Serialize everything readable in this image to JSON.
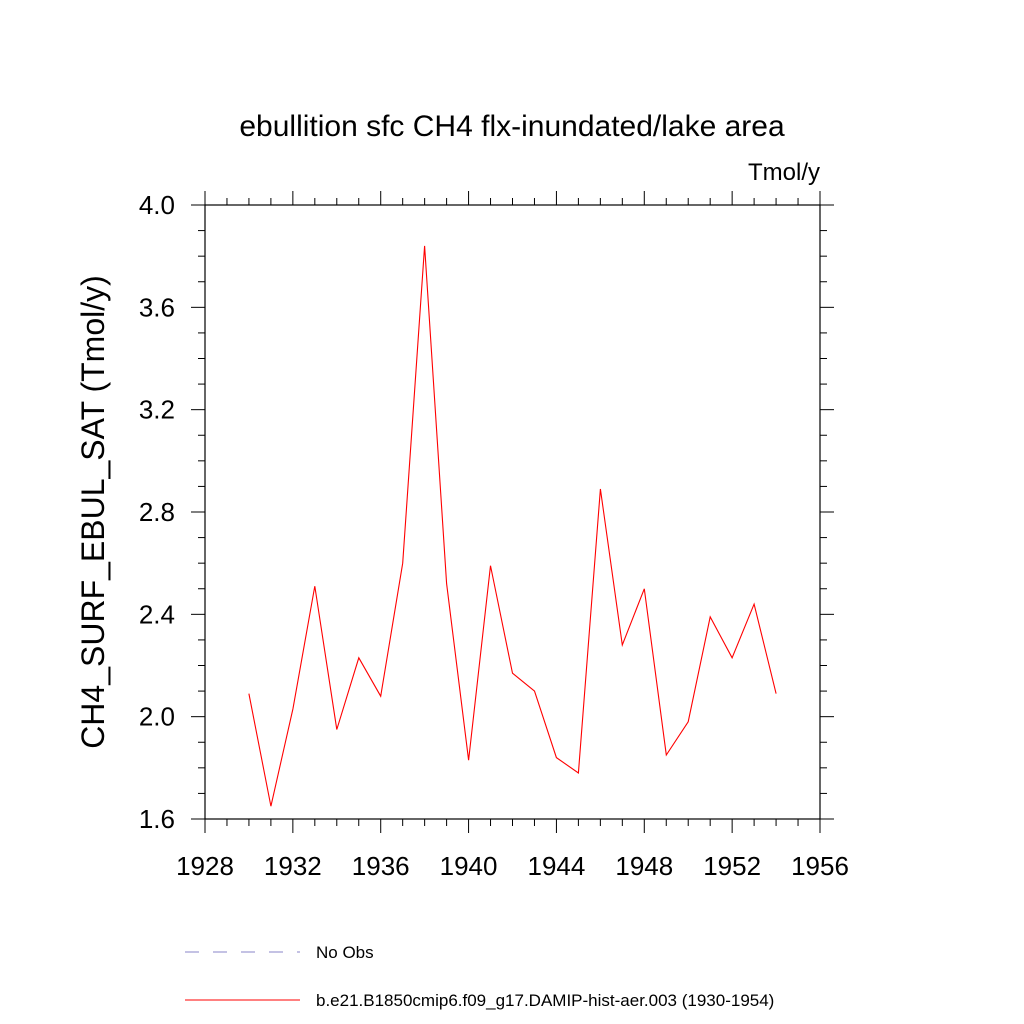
{
  "chart_data": {
    "type": "line",
    "title": "ebullition sfc CH4 flx-inundated/lake area",
    "units_label": "Tmol/y",
    "ylabel": "CH4_SURF_EBUL_SAT  (Tmol/y)",
    "xlabel": "",
    "xlim": [
      1928,
      1956
    ],
    "ylim": [
      1.6,
      4.0
    ],
    "x_ticks": [
      1928,
      1932,
      1936,
      1940,
      1944,
      1948,
      1952,
      1956
    ],
    "x_tick_labels": [
      "1928",
      "1932",
      "1936",
      "1940",
      "1944",
      "1948",
      "1952",
      "1956"
    ],
    "y_ticks": [
      1.6,
      2.0,
      2.4,
      2.8,
      3.2,
      3.6,
      4.0
    ],
    "y_tick_labels": [
      "1.6",
      "2.0",
      "2.4",
      "2.8",
      "3.2",
      "3.6",
      "4.0"
    ],
    "grid": false,
    "legend_position": "bottom",
    "series": [
      {
        "name": "b.e21.B1850cmip6.f09_g17.DAMIP-hist-aer.003 (1930-1954)",
        "color": "#ff0000",
        "style": "solid",
        "x": [
          1930,
          1931,
          1932,
          1933,
          1934,
          1935,
          1936,
          1937,
          1938,
          1939,
          1940,
          1941,
          1942,
          1943,
          1944,
          1945,
          1946,
          1947,
          1948,
          1949,
          1950,
          1951,
          1952,
          1953,
          1954
        ],
        "y": [
          2.09,
          1.65,
          2.03,
          2.51,
          1.95,
          2.23,
          2.08,
          2.6,
          3.84,
          2.52,
          1.83,
          2.59,
          2.17,
          2.1,
          1.84,
          1.78,
          2.89,
          2.28,
          2.5,
          1.85,
          1.98,
          2.39,
          2.23,
          2.44,
          2.09
        ]
      }
    ],
    "legend": [
      {
        "label": "No Obs",
        "color": "#8a86c8",
        "style": "dashed"
      },
      {
        "label": "b.e21.B1850cmip6.f09_g17.DAMIP-hist-aer.003 (1930-1954)",
        "color": "#ff0000",
        "style": "solid"
      }
    ]
  }
}
